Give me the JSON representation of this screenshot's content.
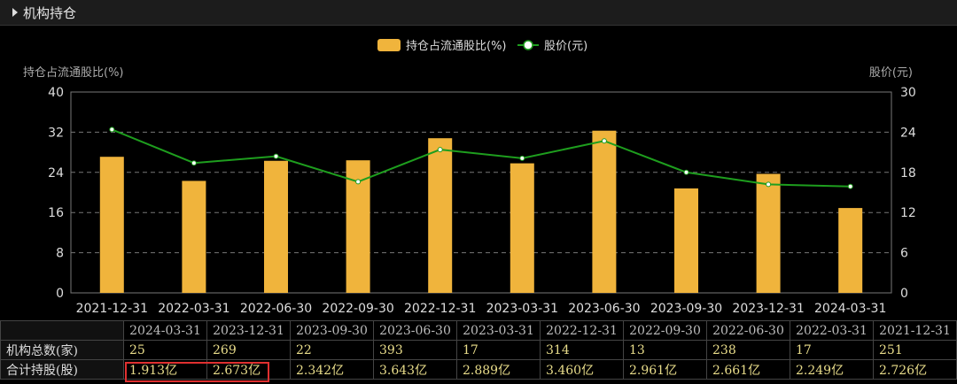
{
  "panel": {
    "title": "机构持仓"
  },
  "chart_data": {
    "type": "bar",
    "legend": {
      "bar_series": "持仓占流通股比(%)",
      "line_series": "股价(元)",
      "placement": "top-center"
    },
    "ylabel_left": "持仓占流通股比(%)",
    "ylabel_right": "股价(元)",
    "categories": [
      "2021-12-31",
      "2022-03-31",
      "2022-06-30",
      "2022-09-30",
      "2022-12-31",
      "2023-03-31",
      "2023-06-30",
      "2023-09-30",
      "2023-12-31",
      "2024-03-31"
    ],
    "series": [
      {
        "name": "持仓占流通股比(%)",
        "type": "bar",
        "axis": "left",
        "color": "#f0b43c",
        "values": [
          27.1,
          22.3,
          26.3,
          26.4,
          30.8,
          25.8,
          32.3,
          20.8,
          23.7,
          16.9
        ]
      },
      {
        "name": "股价(元)",
        "type": "line",
        "axis": "right",
        "color": "#1e9e1e",
        "values": [
          24.4,
          19.4,
          20.4,
          16.6,
          21.4,
          20.1,
          22.7,
          18.0,
          16.2,
          15.9
        ]
      }
    ],
    "ylim_left": [
      0,
      40
    ],
    "ylim_right": [
      0,
      30
    ],
    "yticks_left": [
      "0",
      "8",
      "16",
      "24",
      "32",
      "40"
    ],
    "yticks_right": [
      "0",
      "6",
      "12",
      "18",
      "24",
      "30"
    ],
    "grid": true
  },
  "table": {
    "headers": [
      "2024-03-31",
      "2023-12-31",
      "2023-09-30",
      "2023-06-30",
      "2023-03-31",
      "2022-12-31",
      "2022-09-30",
      "2022-06-30",
      "2022-03-31",
      "2021-12-31"
    ],
    "rows": [
      {
        "label": "机构总数(家)",
        "values": [
          "25",
          "269",
          "22",
          "393",
          "17",
          "314",
          "13",
          "238",
          "17",
          "251"
        ]
      },
      {
        "label": "合计持股(股)",
        "values": [
          "1.913亿",
          "2.673亿",
          "2.342亿",
          "3.643亿",
          "2.889亿",
          "3.460亿",
          "2.961亿",
          "2.661亿",
          "2.249亿",
          "2.726亿"
        ]
      }
    ]
  }
}
